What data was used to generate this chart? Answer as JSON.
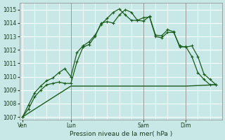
{
  "background_color": "#c8e8e8",
  "grid_color": "#b8d8d8",
  "line_color_dark": "#1a5c1a",
  "line_color_medium": "#2d7a2d",
  "ylabel": "Pression niveau de la mer( hPa )",
  "ylim": [
    1006.8,
    1015.5
  ],
  "yticks": [
    1007,
    1008,
    1009,
    1010,
    1011,
    1012,
    1013,
    1014,
    1015
  ],
  "xtick_labels": [
    "Ven",
    "Lun",
    "Sam",
    "Dim"
  ],
  "xtick_positions": [
    0,
    8,
    20,
    27
  ],
  "vline_positions": [
    8,
    20,
    27
  ],
  "series1_x": [
    0,
    1,
    2,
    3,
    4,
    5,
    6,
    7,
    8,
    9,
    10,
    11,
    12,
    13,
    14,
    15,
    16,
    17,
    18,
    19,
    20,
    21,
    22,
    23,
    24,
    25,
    26,
    27,
    28,
    29,
    30,
    31,
    32
  ],
  "series1_y": [
    1007.0,
    1007.6,
    1008.5,
    1009.0,
    1009.4,
    1009.5,
    1009.6,
    1009.5,
    1009.5,
    1011.1,
    1012.2,
    1012.4,
    1013.0,
    1014.0,
    1014.1,
    1014.0,
    1014.6,
    1015.0,
    1014.8,
    1014.2,
    1014.15,
    1014.5,
    1013.1,
    1013.05,
    1013.5,
    1013.35,
    1012.2,
    1012.25,
    1011.5,
    1010.3,
    1009.8,
    1009.4,
    1009.4
  ],
  "series2_x": [
    0,
    1,
    2,
    3,
    4,
    5,
    6,
    7,
    8,
    9,
    10,
    11,
    12,
    13,
    14,
    15,
    16,
    17,
    18,
    19,
    20,
    21,
    22,
    23,
    24,
    25,
    26,
    27,
    28,
    29,
    30,
    31,
    32
  ],
  "series2_y": [
    1007.0,
    1007.9,
    1008.8,
    1009.3,
    1009.7,
    1009.9,
    1010.3,
    1010.6,
    1010.0,
    1011.8,
    1012.3,
    1012.6,
    1013.1,
    1013.9,
    1014.35,
    1014.8,
    1015.05,
    1014.6,
    1014.2,
    1014.2,
    1014.4,
    1014.45,
    1013.0,
    1012.9,
    1013.3,
    1013.3,
    1012.3,
    1012.2,
    1012.3,
    1011.5,
    1010.2,
    1009.8,
    1009.4
  ],
  "series3_x": [
    0,
    8,
    27,
    32
  ],
  "series3_y": [
    1007.0,
    1009.3,
    1009.3,
    1009.4
  ]
}
